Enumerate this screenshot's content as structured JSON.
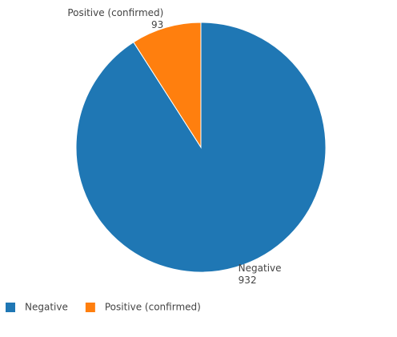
{
  "chart_data": {
    "type": "pie",
    "categories": [
      "Negative",
      "Positive (confirmed)"
    ],
    "values": [
      932,
      93
    ],
    "colors": [
      "#1f77b4",
      "#ff7f0e"
    ],
    "legend": "bottom-left"
  }
}
